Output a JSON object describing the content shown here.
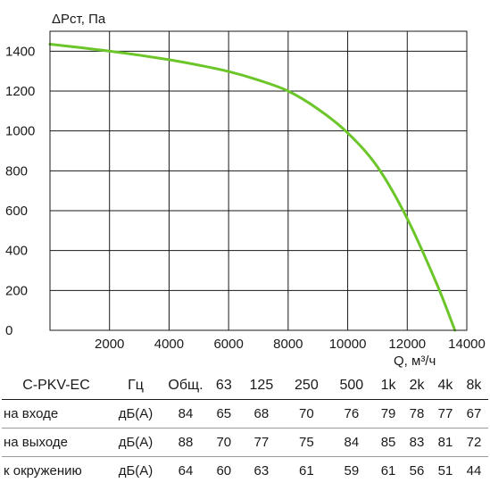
{
  "chart_data": {
    "type": "line",
    "ylabel": "ΔPст, Па",
    "xlabel": "Q, м³/ч",
    "xlim": [
      0,
      14000
    ],
    "ylim": [
      0,
      1500
    ],
    "x_ticks": [
      "2000",
      "4000",
      "6000",
      "8000",
      "10000",
      "12000",
      "14000"
    ],
    "y_ticks": [
      "0",
      "200",
      "400",
      "600",
      "800",
      "1000",
      "1200",
      "1400"
    ],
    "grid": true,
    "color": "#6cc62a",
    "series": [
      {
        "points": [
          [
            0,
            1435
          ],
          [
            1000,
            1418
          ],
          [
            2000,
            1400
          ],
          [
            3000,
            1380
          ],
          [
            4000,
            1357
          ],
          [
            5000,
            1330
          ],
          [
            6000,
            1298
          ],
          [
            7000,
            1255
          ],
          [
            8000,
            1200
          ],
          [
            9000,
            1110
          ],
          [
            10000,
            990
          ],
          [
            11000,
            820
          ],
          [
            12000,
            560
          ],
          [
            13000,
            230
          ],
          [
            13600,
            0
          ]
        ]
      }
    ]
  },
  "noise_table": {
    "model": "C-PKV-EC",
    "hz_label": "Гц",
    "total_label": "Общ.",
    "bands": [
      "63",
      "125",
      "250",
      "500",
      "1k",
      "2k",
      "4k",
      "8k"
    ],
    "rows": [
      {
        "label": "на входе",
        "unit": "дБ(А)",
        "total": "84",
        "values": [
          "65",
          "68",
          "70",
          "76",
          "79",
          "78",
          "77",
          "67"
        ]
      },
      {
        "label": "на выходе",
        "unit": "дБ(А)",
        "total": "88",
        "values": [
          "70",
          "77",
          "75",
          "84",
          "85",
          "83",
          "81",
          "72"
        ]
      },
      {
        "label": "к окружению",
        "unit": "дБ(А)",
        "total": "64",
        "values": [
          "60",
          "63",
          "61",
          "59",
          "61",
          "56",
          "51",
          "44"
        ]
      }
    ]
  }
}
